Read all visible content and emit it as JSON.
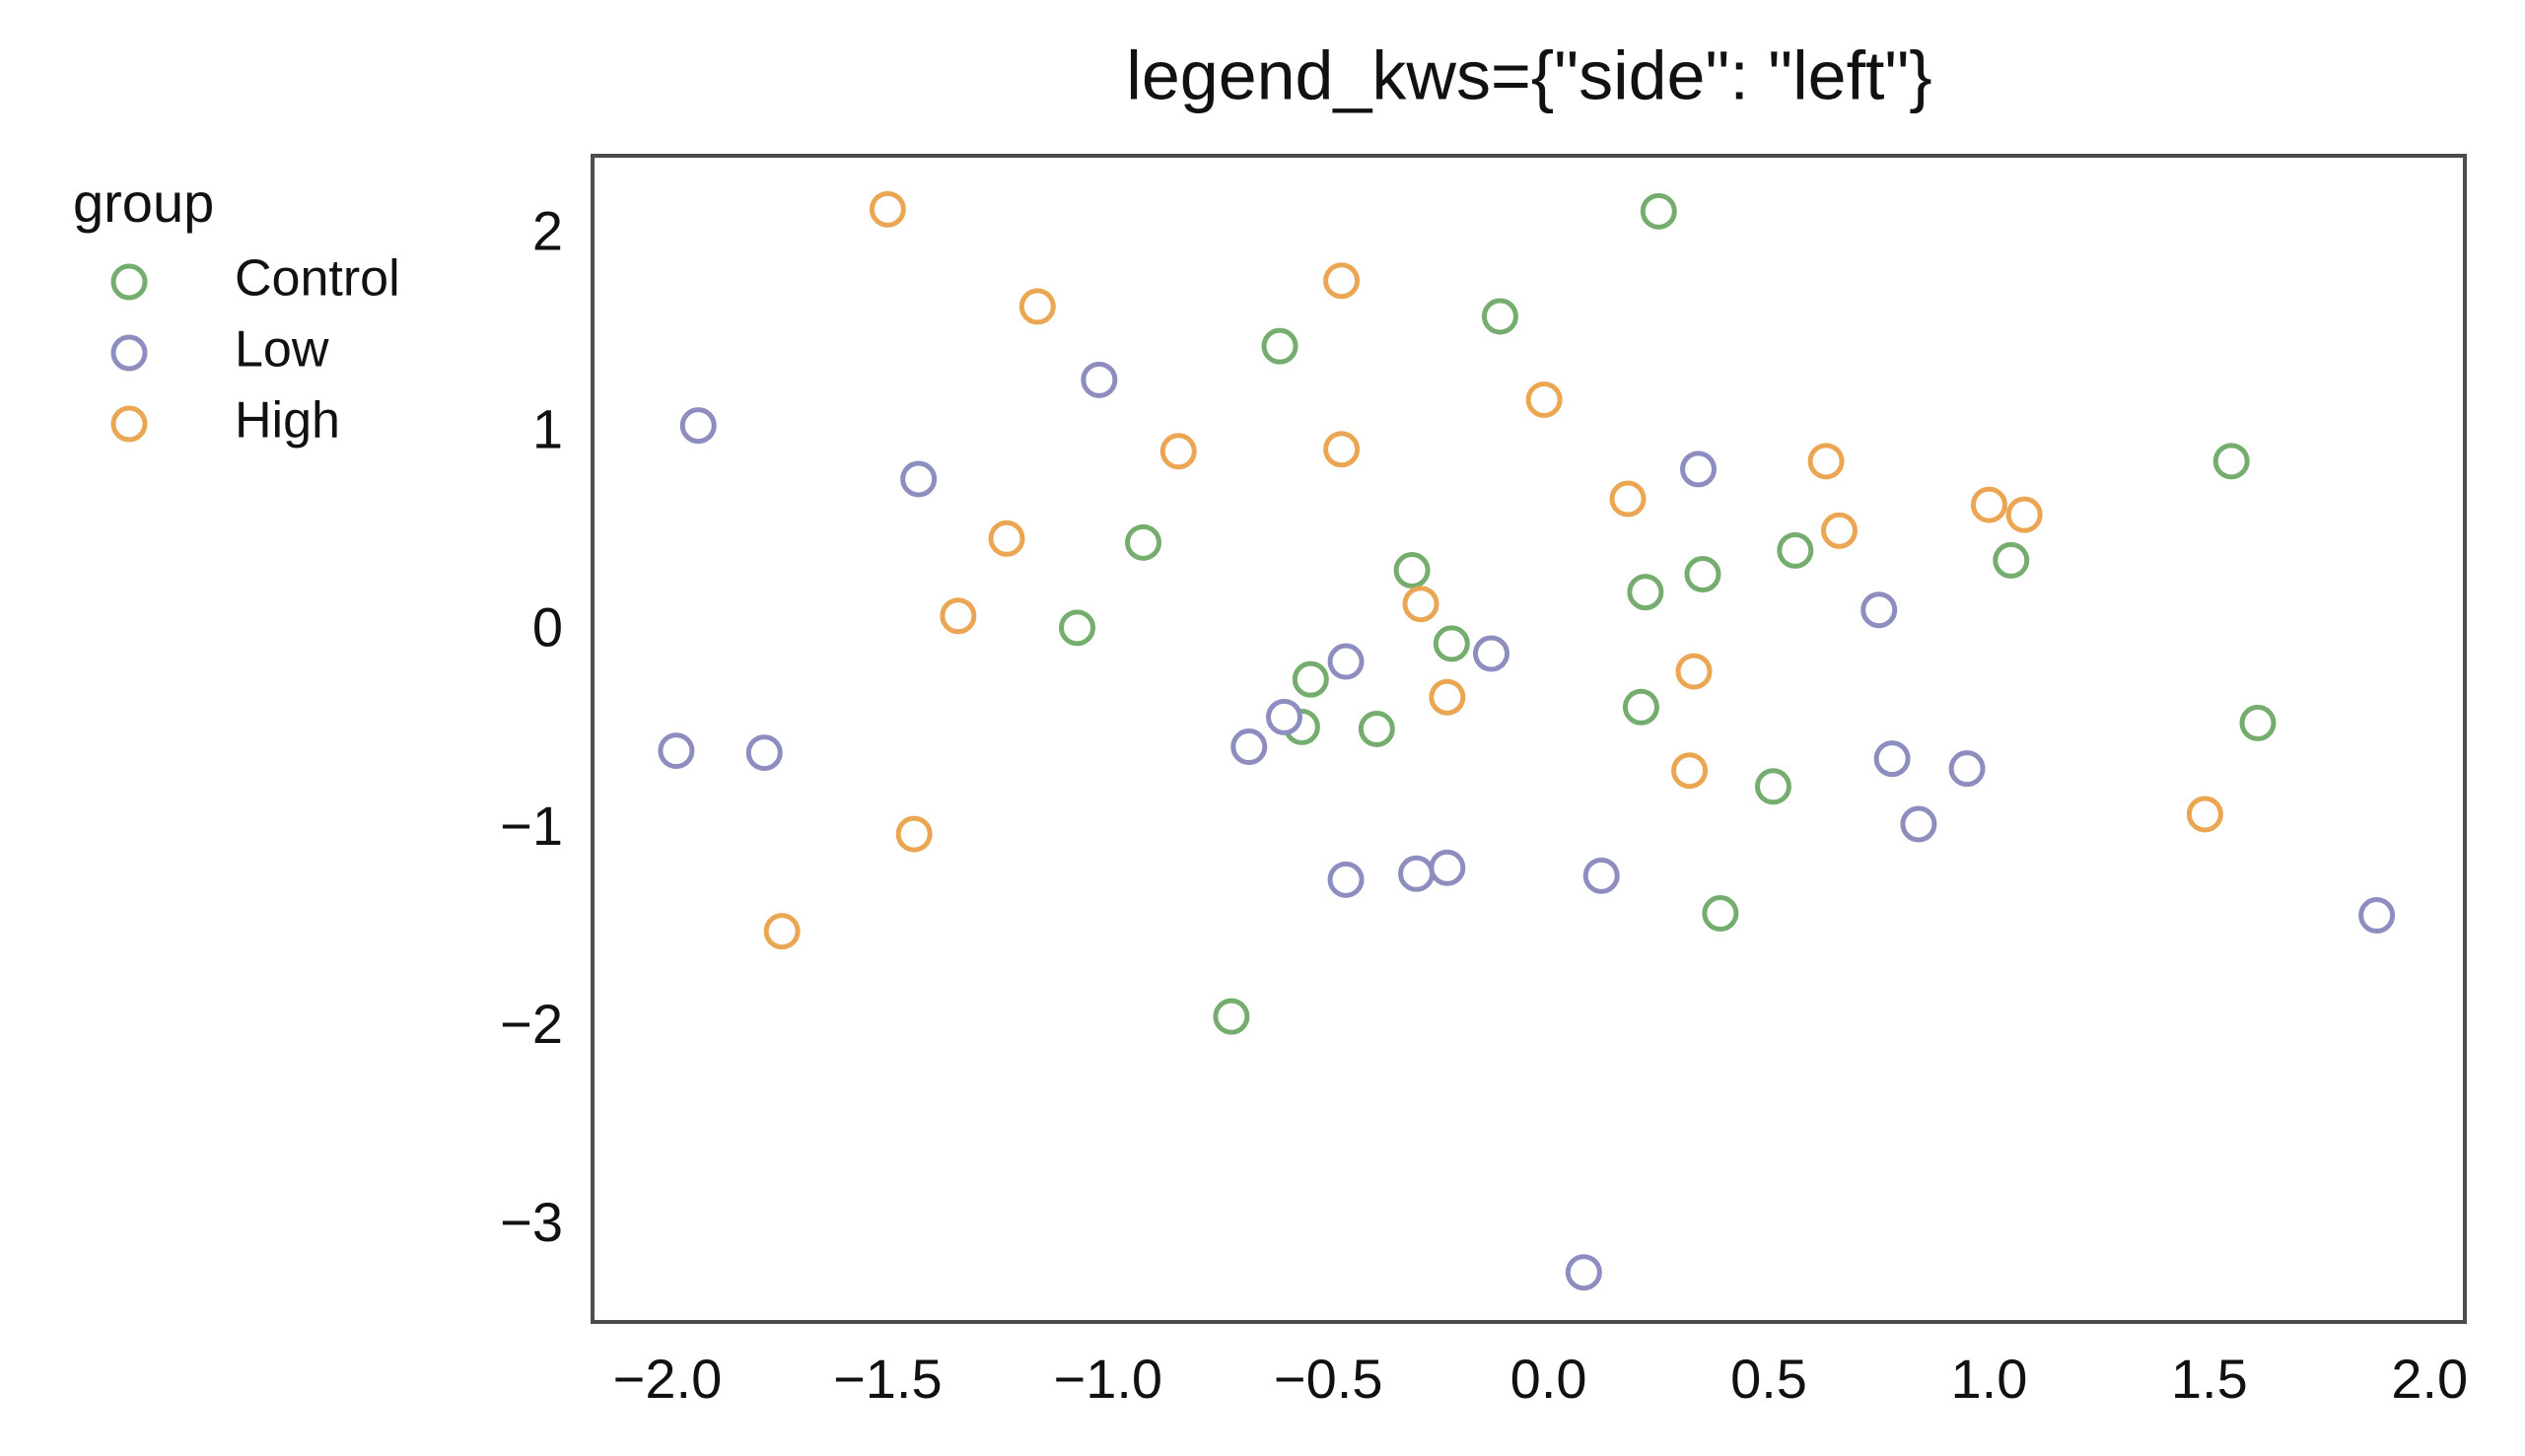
{
  "chart_data": {
    "type": "scatter",
    "title": "legend_kws={\"side\": \"left\"}",
    "legend_title": "group",
    "legend_position": "left",
    "xlim": [
      -2.17,
      2.08
    ],
    "ylim": [
      -3.48,
      2.4
    ],
    "xticks": [
      {
        "value": -2,
        "label": "−2.0"
      },
      {
        "value": -1.5,
        "label": "−1.5"
      },
      {
        "value": -1,
        "label": "−1.0"
      },
      {
        "value": -0.5,
        "label": "−0.5"
      },
      {
        "value": 0,
        "label": "0.0"
      },
      0.5,
      {
        "value": 1,
        "label": "1.0"
      },
      1.5,
      {
        "value": 2,
        "label": "2.0"
      }
    ],
    "yticks": [
      {
        "value": -3,
        "label": "−3"
      },
      {
        "value": -2,
        "label": "−2"
      },
      {
        "value": -1,
        "label": "−1"
      },
      0,
      1,
      2
    ],
    "grid": false,
    "series": [
      {
        "name": "Control",
        "color": "#74ad6e",
        "x": [
          0.25,
          -0.11,
          -0.61,
          -0.92,
          -0.31,
          -1.07,
          0.35,
          0.56,
          0.22,
          1.05,
          1.55,
          -0.22,
          -0.54,
          -0.39,
          -0.56,
          0.21,
          0.51,
          1.61,
          0.39,
          -0.72
        ],
        "values": [
          2.12,
          1.59,
          1.44,
          0.45,
          0.31,
          0.02,
          0.29,
          0.41,
          0.2,
          0.36,
          0.86,
          -0.06,
          -0.24,
          -0.49,
          -0.48,
          -0.38,
          -0.78,
          -0.46,
          -1.42,
          -1.94
        ]
      },
      {
        "name": "Low",
        "color": "#8d8dc0",
        "x": [
          -1.93,
          -1.02,
          -1.43,
          0.34,
          0.75,
          -0.46,
          -0.13,
          -0.6,
          -0.68,
          -1.98,
          -1.78,
          0.78,
          0.95,
          0.84,
          -0.46,
          -0.3,
          -0.23,
          0.12,
          1.88,
          0.08
        ],
        "values": [
          1.04,
          1.27,
          0.77,
          0.82,
          0.11,
          -0.15,
          -0.11,
          -0.43,
          -0.58,
          -0.6,
          -0.61,
          -0.64,
          -0.69,
          -0.97,
          -1.25,
          -1.22,
          -1.19,
          -1.23,
          -1.43,
          -3.23
        ]
      },
      {
        "name": "High",
        "color": "#eba653",
        "x": [
          -1.5,
          -1.16,
          -0.47,
          -0.01,
          -0.84,
          -0.47,
          0.18,
          0.63,
          0.66,
          1.0,
          1.08,
          -1.23,
          -1.34,
          -0.29,
          0.33,
          -0.23,
          0.32,
          1.49,
          -1.44,
          -1.74
        ],
        "values": [
          2.13,
          1.64,
          1.77,
          1.17,
          0.91,
          0.92,
          0.67,
          0.86,
          0.51,
          0.64,
          0.59,
          0.47,
          0.08,
          0.14,
          -0.2,
          -0.33,
          -0.7,
          -0.92,
          -1.02,
          -1.51
        ]
      }
    ]
  }
}
